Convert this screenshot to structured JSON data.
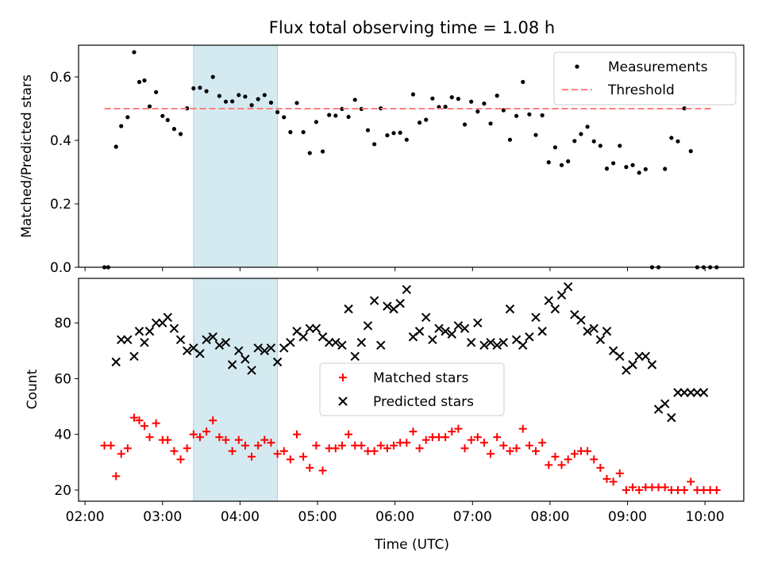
{
  "chart_data": [
    {
      "type": "scatter",
      "title": "Flux total observing time = 1.08 h",
      "xlabel": "",
      "ylabel": "Matched/Predicted stars",
      "xlim": [
        "01:55",
        "10:30"
      ],
      "ylim": [
        0,
        0.7
      ],
      "yticks": [
        "0.0",
        "0.2",
        "0.4",
        "0.6"
      ],
      "yticks_values": [
        0,
        0.2,
        0.4,
        0.6
      ],
      "highlight_span": {
        "from": "03:24",
        "to": "04:29",
        "color": "#d4eaf0"
      },
      "legend": {
        "position": "top-right"
      },
      "series": [
        {
          "name": "Measurements",
          "marker": "dot",
          "color": "#000000",
          "x": [
            "02:15",
            "02:18",
            "02:24",
            "02:28",
            "02:33",
            "02:38",
            "02:42",
            "02:46",
            "02:50",
            "02:55",
            "03:00",
            "03:04",
            "03:09",
            "03:14",
            "03:19",
            "03:24",
            "03:29",
            "03:34",
            "03:39",
            "03:44",
            "03:49",
            "03:54",
            "03:59",
            "04:04",
            "04:09",
            "04:14",
            "04:19",
            "04:24",
            "04:29",
            "04:34",
            "04:39",
            "04:44",
            "04:49",
            "04:54",
            "04:59",
            "05:04",
            "05:09",
            "05:14",
            "05:19",
            "05:24",
            "05:29",
            "05:34",
            "05:39",
            "05:44",
            "05:49",
            "05:54",
            "05:59",
            "06:04",
            "06:09",
            "06:14",
            "06:19",
            "06:24",
            "06:29",
            "06:34",
            "06:39",
            "06:44",
            "06:49",
            "06:54",
            "06:59",
            "07:04",
            "07:09",
            "07:14",
            "07:19",
            "07:24",
            "07:29",
            "07:34",
            "07:39",
            "07:44",
            "07:49",
            "07:54",
            "07:59",
            "08:04",
            "08:09",
            "08:14",
            "08:19",
            "08:24",
            "08:29",
            "08:34",
            "08:39",
            "08:44",
            "08:49",
            "08:54",
            "08:59",
            "09:04",
            "09:09",
            "09:14",
            "09:19",
            "09:24",
            "09:29",
            "09:34",
            "09:39",
            "09:44",
            "09:49",
            "09:54",
            "09:59",
            "10:04",
            "10:09"
          ],
          "y": [
            0.0,
            0.0,
            0.38,
            0.445,
            0.473,
            0.678,
            0.584,
            0.589,
            0.507,
            0.552,
            0.477,
            0.464,
            0.436,
            0.42,
            0.501,
            0.564,
            0.566,
            0.555,
            0.6,
            0.54,
            0.522,
            0.523,
            0.543,
            0.538,
            0.511,
            0.53,
            0.543,
            0.519,
            0.489,
            0.473,
            0.426,
            0.518,
            0.426,
            0.36,
            0.458,
            0.365,
            0.48,
            0.478,
            0.499,
            0.474,
            0.528,
            0.499,
            0.432,
            0.388,
            0.501,
            0.416,
            0.423,
            0.424,
            0.402,
            0.545,
            0.456,
            0.465,
            0.532,
            0.505,
            0.506,
            0.536,
            0.531,
            0.45,
            0.522,
            0.491,
            0.516,
            0.453,
            0.541,
            0.495,
            0.402,
            0.477,
            0.584,
            0.482,
            0.417,
            0.479,
            0.331,
            0.378,
            0.322,
            0.334,
            0.398,
            0.42,
            0.443,
            0.397,
            0.383,
            0.311,
            0.328,
            0.383,
            0.316,
            0.322,
            0.298,
            0.309,
            0.0,
            0.0,
            0.31,
            0.408,
            0.397,
            0.501,
            0.366,
            0.0,
            0.0,
            0.0,
            0.0
          ]
        },
        {
          "name": "Threshold",
          "marker": "dashed-line",
          "color": "#ff7f7f",
          "x": [
            "02:15",
            "10:05"
          ],
          "y": [
            0.5,
            0.5
          ]
        }
      ]
    },
    {
      "type": "scatter",
      "title": "",
      "xlabel": "Time (UTC)",
      "ylabel": "Count",
      "xlim": [
        "01:55",
        "10:30"
      ],
      "ylim": [
        16,
        96
      ],
      "xticks": [
        "02:00",
        "03:00",
        "04:00",
        "05:00",
        "06:00",
        "07:00",
        "08:00",
        "09:00",
        "10:00"
      ],
      "yticks": [
        "20",
        "40",
        "60",
        "80"
      ],
      "yticks_values": [
        20,
        40,
        60,
        80
      ],
      "highlight_span": {
        "from": "03:24",
        "to": "04:29",
        "color": "#d4eaf0"
      },
      "legend": {
        "position": "center"
      },
      "series": [
        {
          "name": "Matched stars",
          "marker": "plus",
          "color": "#ff0000",
          "x": [
            "02:15",
            "02:20",
            "02:24",
            "02:28",
            "02:33",
            "02:38",
            "02:42",
            "02:46",
            "02:50",
            "02:55",
            "03:00",
            "03:04",
            "03:09",
            "03:14",
            "03:19",
            "03:24",
            "03:29",
            "03:34",
            "03:39",
            "03:44",
            "03:49",
            "03:54",
            "03:59",
            "04:04",
            "04:09",
            "04:14",
            "04:19",
            "04:24",
            "04:29",
            "04:34",
            "04:39",
            "04:44",
            "04:49",
            "04:54",
            "04:59",
            "05:04",
            "05:09",
            "05:14",
            "05:19",
            "05:24",
            "05:29",
            "05:34",
            "05:39",
            "05:44",
            "05:49",
            "05:54",
            "05:59",
            "06:04",
            "06:09",
            "06:14",
            "06:19",
            "06:24",
            "06:29",
            "06:34",
            "06:39",
            "06:44",
            "06:49",
            "06:54",
            "06:59",
            "07:04",
            "07:09",
            "07:14",
            "07:19",
            "07:24",
            "07:29",
            "07:34",
            "07:39",
            "07:44",
            "07:49",
            "07:54",
            "07:59",
            "08:04",
            "08:09",
            "08:14",
            "08:19",
            "08:24",
            "08:29",
            "08:34",
            "08:39",
            "08:44",
            "08:49",
            "08:54",
            "08:59",
            "09:04",
            "09:09",
            "09:14",
            "09:19",
            "09:24",
            "09:29",
            "09:34",
            "09:39",
            "09:44",
            "09:49",
            "09:54",
            "09:59",
            "10:04",
            "10:09"
          ],
          "y": [
            36,
            36,
            25,
            33,
            35,
            46,
            45,
            43,
            39,
            44,
            38,
            38,
            34,
            31,
            35,
            40,
            39,
            41,
            45,
            39,
            38,
            34,
            38,
            36,
            32,
            36,
            38,
            37,
            33,
            34,
            31,
            40,
            32,
            28,
            36,
            27,
            35,
            35,
            36,
            40,
            36,
            36,
            34,
            34,
            36,
            35,
            36,
            37,
            37,
            41,
            35,
            38,
            39,
            39,
            39,
            41,
            42,
            35,
            38,
            39,
            37,
            33,
            39,
            36,
            34,
            35,
            42,
            36,
            34,
            37,
            29,
            32,
            29,
            31,
            33,
            34,
            34,
            31,
            28,
            24,
            23,
            26,
            20,
            21,
            20,
            21,
            21,
            21,
            21,
            20,
            20,
            20,
            23,
            20,
            20,
            20,
            20
          ]
        },
        {
          "name": "Predicted stars",
          "marker": "x",
          "color": "#000000",
          "x": [
            "02:24",
            "02:28",
            "02:33",
            "02:38",
            "02:42",
            "02:46",
            "02:50",
            "02:55",
            "03:00",
            "03:04",
            "03:09",
            "03:14",
            "03:19",
            "03:24",
            "03:29",
            "03:34",
            "03:39",
            "03:44",
            "03:49",
            "03:54",
            "03:59",
            "04:04",
            "04:09",
            "04:14",
            "04:19",
            "04:24",
            "04:29",
            "04:34",
            "04:39",
            "04:44",
            "04:49",
            "04:54",
            "04:59",
            "05:04",
            "05:09",
            "05:14",
            "05:19",
            "05:24",
            "05:29",
            "05:34",
            "05:39",
            "05:44",
            "05:49",
            "05:54",
            "05:59",
            "06:04",
            "06:09",
            "06:14",
            "06:19",
            "06:24",
            "06:29",
            "06:34",
            "06:39",
            "06:44",
            "06:49",
            "06:54",
            "06:59",
            "07:04",
            "07:09",
            "07:14",
            "07:19",
            "07:24",
            "07:29",
            "07:34",
            "07:39",
            "07:44",
            "07:49",
            "07:54",
            "07:59",
            "08:04",
            "08:09",
            "08:14",
            "08:19",
            "08:24",
            "08:29",
            "08:34",
            "08:39",
            "08:44",
            "08:49",
            "08:54",
            "08:59",
            "09:04",
            "09:09",
            "09:14",
            "09:19",
            "09:24",
            "09:29",
            "09:34",
            "09:39",
            "09:44",
            "09:49",
            "09:54",
            "09:59"
          ],
          "y": [
            66,
            74,
            74,
            68,
            77,
            73,
            77,
            80,
            80,
            82,
            78,
            74,
            70,
            71,
            69,
            74,
            75,
            72,
            73,
            65,
            70,
            67,
            63,
            71,
            70,
            71,
            66,
            71,
            73,
            77,
            75,
            78,
            78,
            75,
            73,
            73,
            72,
            85,
            68,
            73,
            79,
            88,
            72,
            86,
            85,
            87,
            92,
            75,
            77,
            82,
            74,
            78,
            77,
            76,
            79,
            78,
            73,
            80,
            72,
            73,
            72,
            73,
            85,
            74,
            72,
            75,
            82,
            77,
            88,
            85,
            90,
            93,
            83,
            81,
            77,
            78,
            74,
            77,
            70,
            68,
            63,
            65,
            68,
            68,
            65,
            49,
            51,
            46,
            55,
            55,
            55,
            55,
            55
          ]
        }
      ]
    }
  ]
}
